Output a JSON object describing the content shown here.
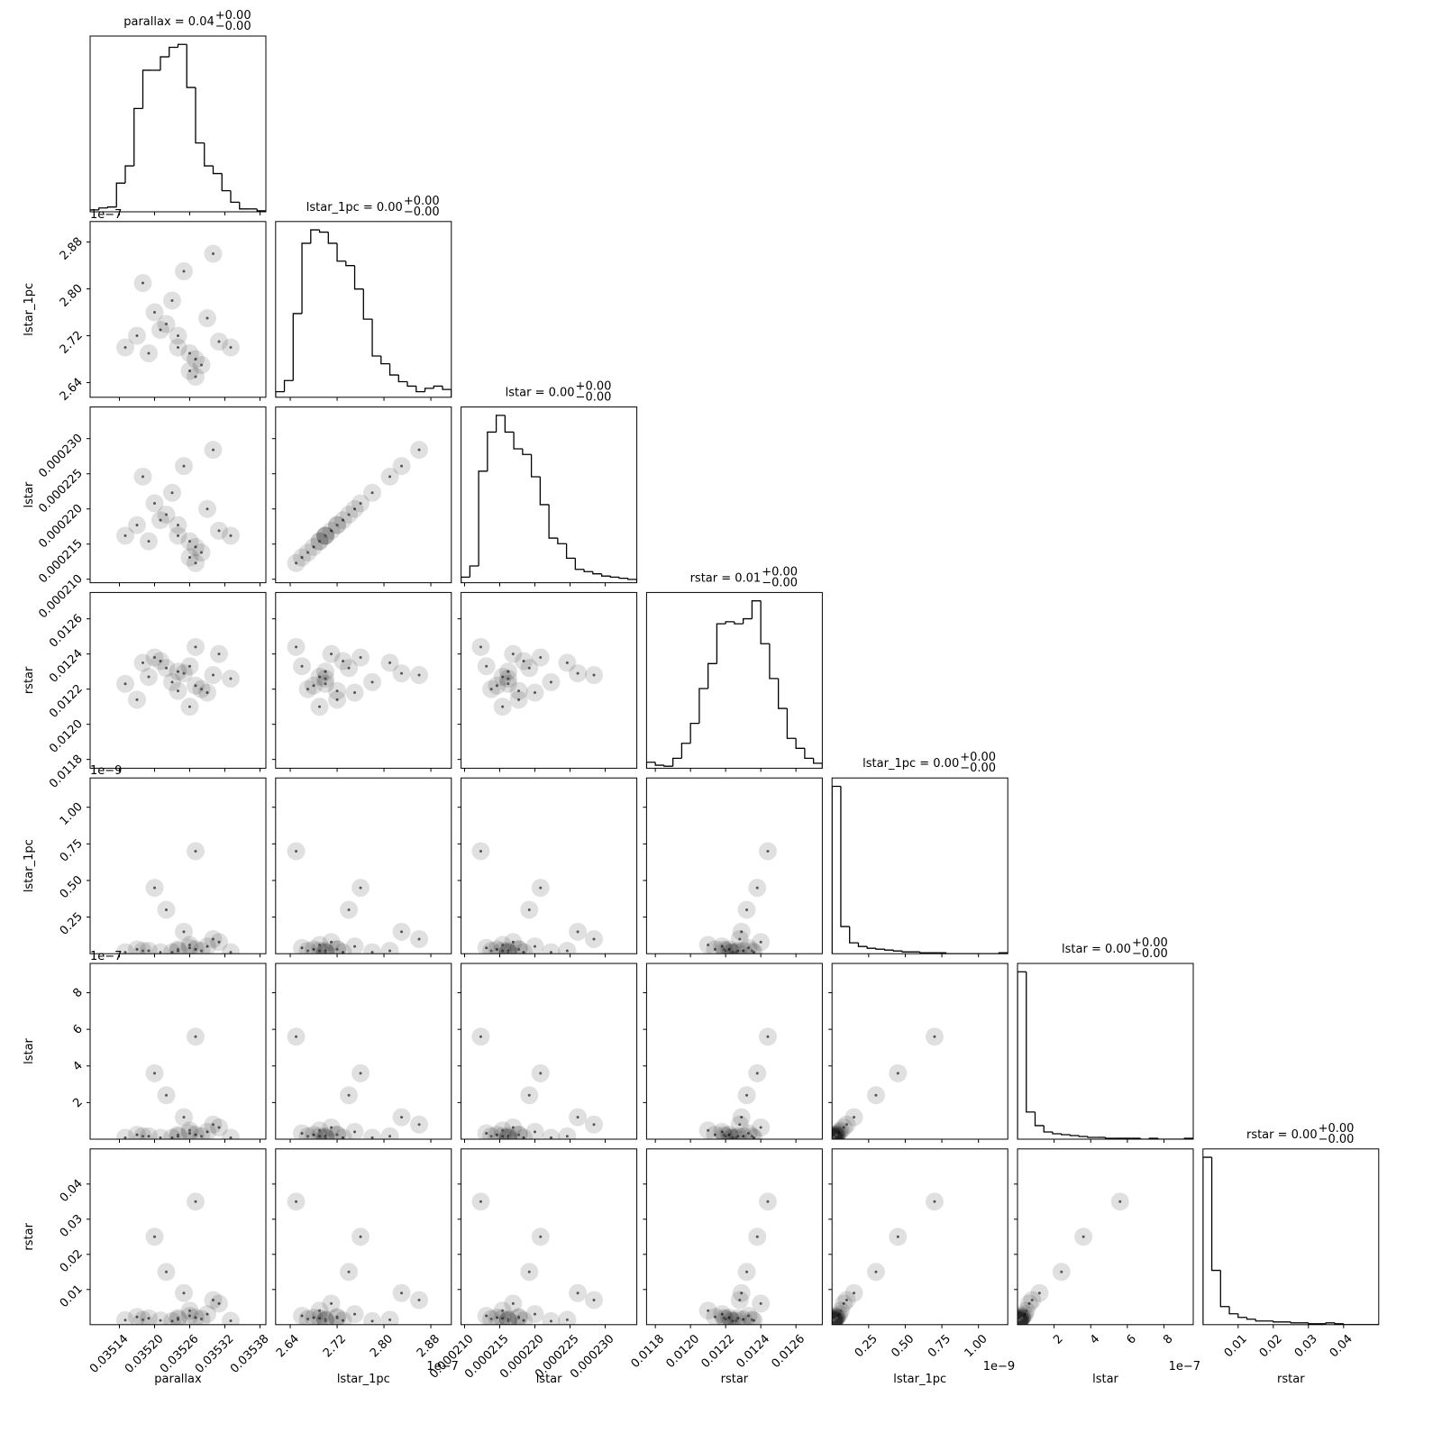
{
  "chart_data": {
    "type": "corner",
    "params": [
      {
        "label": "parallax",
        "xlim": [
          0.03509,
          0.03539
        ],
        "ticks": [
          0.03514,
          {
            "value": 0.0352,
            "label": "0.03520"
          },
          0.03526,
          0.03532,
          0.03538
        ],
        "title": {
          "text": "parallax = 0.04",
          "upper": "+0.00",
          "lower": "−0.00"
        },
        "bins": [
          0.03509,
          0.035105,
          0.03512,
          0.035135,
          0.03515,
          0.035165,
          0.03518,
          0.035195,
          0.03521,
          0.035225,
          0.03524,
          0.035255,
          0.03527,
          0.035285,
          0.0353,
          0.035315,
          0.03533,
          0.035345,
          0.03536,
          0.035375,
          0.03539
        ],
        "counts": [
          2,
          4,
          5,
          30,
          48,
          108,
          148,
          148,
          162,
          172,
          175,
          130,
          72,
          48,
          40,
          22,
          10,
          3,
          3,
          1
        ]
      },
      {
        "label": "lstar_1pc",
        "xlim": [
          2.615,
          2.915
        ],
        "offset": "1e−7",
        "ticks": [
          2.64,
          2.72,
          {
            "value": 2.8,
            "label": "2.80"
          },
          2.88
        ],
        "title": {
          "text": "lstar_1pc = 0.00",
          "upper": "+0.00",
          "lower": "−0.00"
        },
        "bins": [
          2.615,
          2.63,
          2.645,
          2.66,
          2.675,
          2.69,
          2.705,
          2.72,
          2.735,
          2.75,
          2.765,
          2.78,
          2.795,
          2.81,
          2.825,
          2.84,
          2.855,
          2.87,
          2.885,
          2.9,
          2.915
        ],
        "counts": [
          5,
          15,
          75,
          138,
          150,
          148,
          138,
          122,
          118,
          97,
          70,
          37,
          30,
          20,
          14,
          10,
          5,
          8,
          10,
          7
        ]
      },
      {
        "label": "lstar",
        "xlim": [
          0.0002095,
          0.0002345
        ],
        "ticks": [
          {
            "value": 0.00021,
            "label": "0.000210"
          },
          0.000215,
          {
            "value": 0.00022,
            "label": "0.000220"
          },
          0.000225,
          {
            "value": 0.00023,
            "label": "0.000230"
          }
        ],
        "title": {
          "text": "lstar = 0.00",
          "upper": "+0.00",
          "lower": "−0.00"
        },
        "bins": [
          0.0002095,
          0.00021075,
          0.000212,
          0.00021325,
          0.0002145,
          0.00021575,
          0.000217,
          0.00021825,
          0.0002195,
          0.00022075,
          0.000222,
          0.00022325,
          0.0002245,
          0.00022575,
          0.000227,
          0.00022825,
          0.0002295,
          0.00023075,
          0.000232,
          0.00023325,
          0.0002345
        ],
        "counts": [
          5,
          15,
          100,
          135,
          150,
          135,
          120,
          115,
          95,
          70,
          40,
          35,
          22,
          12,
          10,
          8,
          6,
          5,
          4,
          3
        ]
      },
      {
        "label": "rstar",
        "xlim": [
          0.01175,
          0.01275
        ],
        "ticks": [
          0.0118,
          {
            "value": 0.012,
            "label": "0.0120"
          },
          0.0122,
          0.0124,
          0.0126
        ],
        "title": {
          "text": "rstar = 0.01",
          "upper": "+0.00",
          "lower": "−0.00"
        },
        "bins": [
          0.01175,
          0.0118,
          0.01185,
          0.0119,
          0.01195,
          0.012,
          0.01205,
          0.0121,
          0.01215,
          0.0122,
          0.01225,
          0.0123,
          0.01235,
          0.0124,
          0.01245,
          0.0125,
          0.01255,
          0.0126,
          0.01265,
          0.0127,
          0.01275
        ],
        "counts": [
          6,
          3,
          2,
          10,
          25,
          45,
          80,
          105,
          145,
          147,
          145,
          150,
          168,
          125,
          90,
          60,
          30,
          20,
          10,
          5
        ]
      },
      {
        "label": "lstar_1pc",
        "xlim": [
          0,
          1.2
        ],
        "offset": "1e−9",
        "ticks": [
          0.25,
          {
            "value": 0.5,
            "label": "0.50"
          },
          0.75,
          {
            "value": 1,
            "label": "1.00"
          }
        ],
        "title": {
          "text": "lstar_1pc = 0.00",
          "upper": "+0.00",
          "lower": "−0.00"
        },
        "bins": [
          0,
          0.06,
          0.12,
          0.18,
          0.24,
          0.3,
          0.36,
          0.42,
          0.48,
          0.54,
          0.6,
          0.66,
          0.72,
          0.78,
          0.84,
          0.9,
          0.96,
          1.02,
          1.08,
          1.14,
          1.2
        ],
        "counts": [
          185,
          30,
          12,
          8,
          6,
          5,
          4,
          3,
          2,
          2,
          1,
          1,
          1,
          0,
          0,
          0,
          0,
          0,
          0,
          1
        ]
      },
      {
        "label": "lstar",
        "xlim": [
          0,
          9.6
        ],
        "offset": "1e−7",
        "ticks": [
          2,
          4,
          6,
          8
        ],
        "title": {
          "text": "lstar = 0.00",
          "upper": "+0.00",
          "lower": "−0.00"
        },
        "bins": [
          0,
          0.48,
          0.96,
          1.44,
          1.92,
          2.4,
          2.88,
          3.36,
          3.84,
          4.32,
          4.8,
          5.28,
          5.76,
          6.24,
          6.72,
          7.2,
          7.68,
          8.16,
          8.64,
          9.12,
          9.6
        ],
        "counts": [
          185,
          30,
          15,
          8,
          6,
          5,
          4,
          3,
          2,
          2,
          1,
          1,
          1,
          1,
          0,
          1,
          0,
          0,
          0,
          1
        ]
      },
      {
        "label": "rstar",
        "xlim": [
          0,
          0.05
        ],
        "ticks": [
          0.01,
          0.02,
          0.03,
          0.04
        ],
        "title": {
          "text": "rstar = 0.00",
          "upper": "+0.00",
          "lower": "−0.00"
        },
        "bins": [
          0,
          0.0025,
          0.005,
          0.0075,
          0.01,
          0.0125,
          0.015,
          0.0175,
          0.02,
          0.0225,
          0.025,
          0.0275,
          0.03,
          0.0325,
          0.035,
          0.0375,
          0.04,
          0.0425,
          0.045,
          0.0475,
          0.05
        ],
        "counts": [
          185,
          60,
          20,
          12,
          8,
          6,
          4,
          4,
          3,
          3,
          2,
          2,
          1,
          1,
          2,
          1,
          0,
          0,
          0,
          0
        ]
      }
    ],
    "samples": [
      [
        0.03524,
        2.7,
        0.0002162,
        0.0123,
        0.02,
        0.16,
        0.0015
      ],
      [
        0.03527,
        2.68,
        0.0002146,
        0.01222,
        0.03,
        0.24,
        0.002
      ],
      [
        0.03521,
        2.73,
        0.0002184,
        0.01236,
        0.01,
        0.08,
        0.0012
      ],
      [
        0.03529,
        2.75,
        0.00022,
        0.01218,
        0.05,
        0.4,
        0.003
      ],
      [
        0.03519,
        2.69,
        0.0002154,
        0.01227,
        0.02,
        0.16,
        0.0018
      ],
      [
        0.03526,
        2.66,
        0.0002131,
        0.01233,
        0.04,
        0.32,
        0.0025
      ],
      [
        0.03523,
        2.78,
        0.0002223,
        0.01224,
        0.01,
        0.08,
        0.001
      ],
      [
        0.03531,
        2.71,
        0.0002169,
        0.0124,
        0.08,
        0.64,
        0.006
      ],
      [
        0.03517,
        2.72,
        0.0002177,
        0.01214,
        0.03,
        0.24,
        0.0022
      ],
      [
        0.03525,
        2.83,
        0.0002261,
        0.01229,
        0.15,
        1.2,
        0.009
      ],
      [
        0.03528,
        2.67,
        0.0002138,
        0.0122,
        0.02,
        0.16,
        0.0016
      ],
      [
        0.03522,
        2.74,
        0.0002192,
        0.01232,
        0.3,
        2.4,
        0.015
      ],
      [
        0.03533,
        2.7,
        0.0002162,
        0.01226,
        0.01,
        0.08,
        0.0011
      ],
      [
        0.0352,
        2.76,
        0.0002208,
        0.01238,
        0.45,
        3.6,
        0.025
      ],
      [
        0.03526,
        2.69,
        0.0002154,
        0.0121,
        0.06,
        0.48,
        0.004
      ],
      [
        0.03518,
        2.81,
        0.0002246,
        0.01235,
        0.02,
        0.16,
        0.0014
      ],
      [
        0.03527,
        2.65,
        0.0002123,
        0.01244,
        0.7,
        5.6,
        0.035
      ],
      [
        0.03524,
        2.72,
        0.0002177,
        0.01219,
        0.03,
        0.24,
        0.0019
      ],
      [
        0.0353,
        2.86,
        0.0002284,
        0.01228,
        0.1,
        0.8,
        0.007
      ],
      [
        0.03515,
        2.7,
        0.0002162,
        0.01223,
        0.01,
        0.08,
        0.0013
      ]
    ]
  }
}
